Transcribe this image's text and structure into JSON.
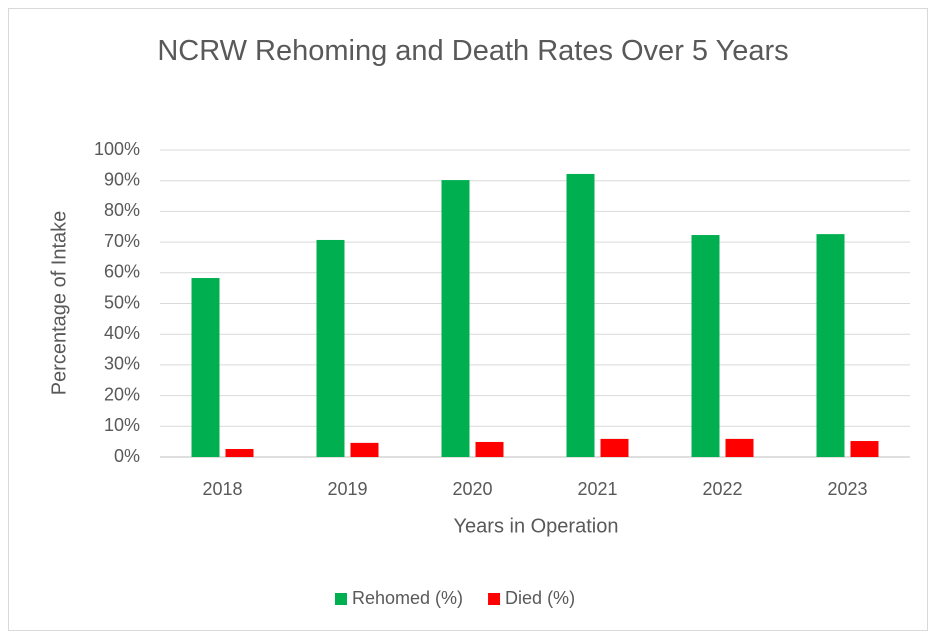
{
  "chart_data": {
    "type": "bar",
    "title": "NCRW Rehoming and Death Rates Over 5 Years",
    "x_label": "Years in Operation",
    "y_label": "Percentage of Intake",
    "categories": [
      "2018",
      "2019",
      "2020",
      "2021",
      "2022",
      "2023"
    ],
    "series": [
      {
        "name": "Rehomed (%)",
        "color": "#00b050",
        "values": [
          58.3,
          70.7,
          90.2,
          92.2,
          72.3,
          72.6
        ]
      },
      {
        "name": "Died (%)",
        "color": "#ff0000",
        "values": [
          2.6,
          4.6,
          4.9,
          5.9,
          5.9,
          5.2
        ]
      }
    ],
    "ylim": [
      0,
      100
    ],
    "yticks": [
      {
        "value": 0,
        "label": "0%"
      },
      {
        "value": 10,
        "label": "10%"
      },
      {
        "value": 20,
        "label": "20%"
      },
      {
        "value": 30,
        "label": "30%"
      },
      {
        "value": 40,
        "label": "40%"
      },
      {
        "value": 50,
        "label": "50%"
      },
      {
        "value": 60,
        "label": "60%"
      },
      {
        "value": 70,
        "label": "70%"
      },
      {
        "value": 80,
        "label": "80%"
      },
      {
        "value": 90,
        "label": "90%"
      },
      {
        "value": 100,
        "label": "100%"
      }
    ],
    "grid": true,
    "legend": "bottom"
  }
}
